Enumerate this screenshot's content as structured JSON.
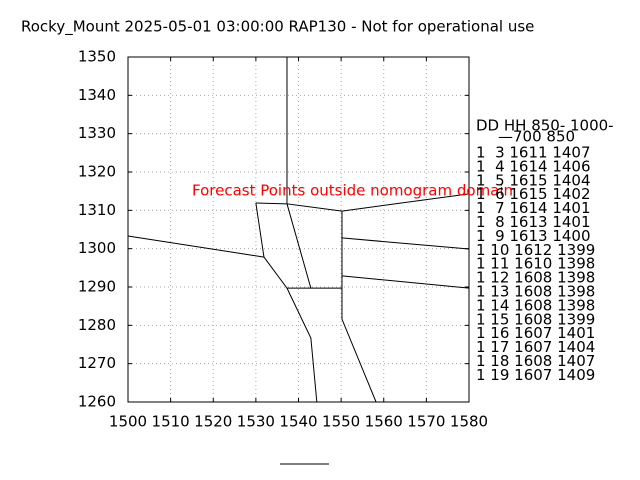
{
  "chart_data": {
    "type": "line",
    "title": "Rocky_Mount 2025-05-01 03:00:00 RAP130 - Not for operational use",
    "annotation": "Forecast Points outside nomogram domain",
    "annotation_color": "#ff0000",
    "xlim": [
      1500,
      1580
    ],
    "xticks": [
      1500,
      1510,
      1520,
      1530,
      1540,
      1550,
      1560,
      1570,
      1580
    ],
    "ylim": [
      1260,
      1350
    ],
    "yticks": [
      1260,
      1270,
      1280,
      1290,
      1300,
      1310,
      1320,
      1330,
      1340,
      1350
    ],
    "grid": true,
    "series": [
      {
        "color": "#000000",
        "x": [
          1537.3,
          1537.3,
          1550.2,
          1580
        ],
        "y": [
          1350,
          1311.7,
          1309.8,
          1314.3
        ]
      },
      {
        "color": "#000000",
        "x": [
          1530,
          1537.3
        ],
        "y": [
          1311.9,
          1311.7
        ]
      },
      {
        "color": "#000000",
        "x": [
          1530,
          1531.9,
          1500
        ],
        "y": [
          1311.9,
          1297.8,
          1303.3
        ]
      },
      {
        "color": "#000000",
        "x": [
          1531.9,
          1537.3,
          1550.2
        ],
        "y": [
          1297.8,
          1289.7,
          1289.7
        ]
      },
      {
        "color": "#000000",
        "x": [
          1537.3,
          1542.9
        ],
        "y": [
          1311.7,
          1289.7
        ]
      },
      {
        "color": "#000000",
        "x": [
          1550.2,
          1550.2,
          1558.2
        ],
        "y": [
          1309.8,
          1281.6,
          1260
        ]
      },
      {
        "color": "#000000",
        "x": [
          1550.2,
          1580
        ],
        "y": [
          1302.8,
          1299.9
        ]
      },
      {
        "color": "#000000",
        "x": [
          1550.2,
          1580
        ],
        "y": [
          1292.9,
          1289.7
        ]
      },
      {
        "color": "#000000",
        "x": [
          1537.3,
          1542.9,
          1544.3
        ],
        "y": [
          1289.7,
          1276.7,
          1260
        ]
      }
    ],
    "table": {
      "header": [
        "DD   HH 850- 1000-",
        "—700   850"
      ],
      "rows": [
        "1  3 1611 1407",
        "1  4 1614 1406",
        "1  5 1615 1404",
        "1  6 1615 1402",
        "1  7 1614 1401",
        "1  8 1613 1401",
        "1  9 1613 1400",
        "1 10 1612 1399",
        "1 11 1610 1398",
        "1 12 1608 1398",
        "1 13 1608 1398",
        "1 14 1608 1398",
        "1 15 1608 1399",
        "1 16 1607 1401",
        "1 17 1607 1404",
        "1 18 1608 1407",
        "1 19 1607 1409"
      ]
    }
  }
}
